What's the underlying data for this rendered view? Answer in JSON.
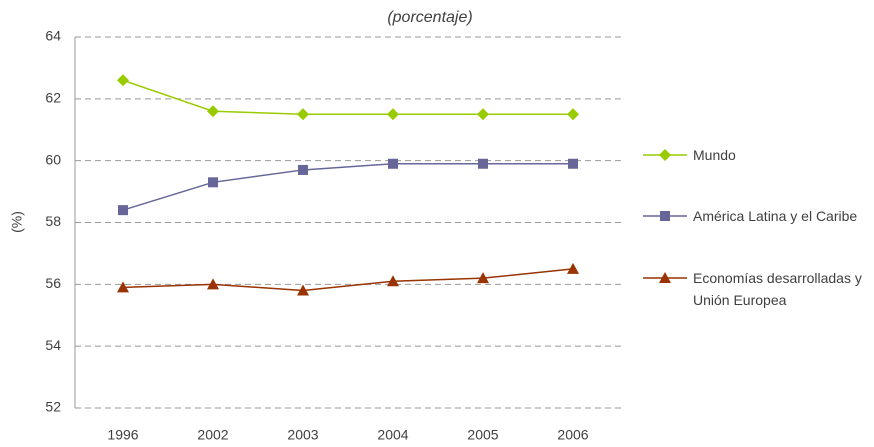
{
  "chart_data": {
    "type": "line",
    "title": "(porcentaje)",
    "y_label": "(%)",
    "categories": [
      "1996",
      "2002",
      "2003",
      "2004",
      "2005",
      "2006"
    ],
    "series": [
      {
        "name": "Mundo",
        "color": "#99cc00",
        "marker": "diamond",
        "values": [
          62.6,
          61.6,
          61.5,
          61.5,
          61.5,
          61.5
        ]
      },
      {
        "name": "América Latina y el Caribe",
        "color": "#666699",
        "marker": "square",
        "values": [
          58.4,
          59.3,
          59.7,
          59.9,
          59.9,
          59.9
        ]
      },
      {
        "name": "Economías desarrolladas y Unión Europea",
        "color": "#993300",
        "marker": "triangle",
        "values": [
          55.9,
          56.0,
          55.8,
          56.1,
          56.2,
          56.5
        ]
      }
    ],
    "ylim": [
      52,
      64
    ],
    "yticks": [
      52,
      54,
      56,
      58,
      60,
      62,
      64
    ],
    "grid": true
  }
}
